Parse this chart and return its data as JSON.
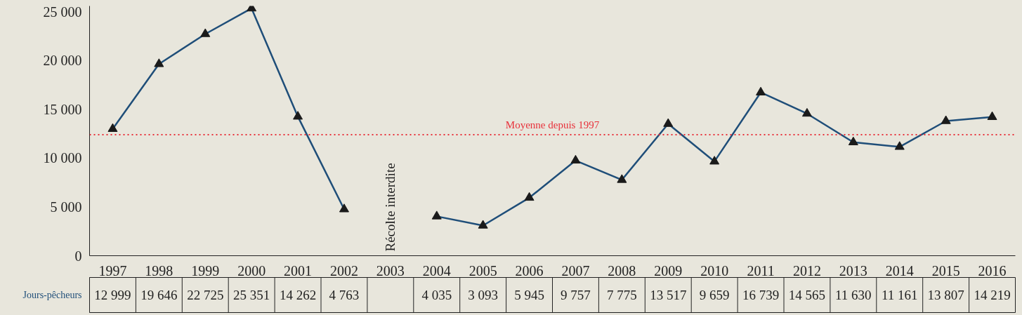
{
  "chart_data": {
    "type": "line",
    "categories": [
      "1997",
      "1998",
      "1999",
      "2000",
      "2001",
      "2002",
      "2003",
      "2004",
      "2005",
      "2006",
      "2007",
      "2008",
      "2009",
      "2010",
      "2011",
      "2012",
      "2013",
      "2014",
      "2015",
      "2016"
    ],
    "series": [
      {
        "name": "Jours-pêcheurs",
        "color": "#1f4e79",
        "values": [
          12999,
          19646,
          22725,
          25351,
          14262,
          4763,
          null,
          4035,
          3093,
          5945,
          9757,
          7775,
          13517,
          9659,
          16739,
          14565,
          11630,
          11161,
          13807,
          14219
        ],
        "value_labels": [
          "12 999",
          "19 646",
          "22 725",
          "25 351",
          "14 262",
          "4 763",
          null,
          "4 035",
          "3 093",
          "5 945",
          "9 757",
          "7 775",
          "13 517",
          "9 659",
          "16 739",
          "14 565",
          "11 630",
          "11 161",
          "13 807",
          "14 219"
        ]
      }
    ],
    "ylim": [
      0,
      25600
    ],
    "yticks": [
      0,
      {
        "value": 5000,
        "label": "5 000"
      },
      {
        "value": 10000,
        "label": "10 000"
      },
      {
        "value": 15000,
        "label": "15 000"
      },
      {
        "value": 20000,
        "label": "20 000"
      },
      {
        "value": 25000,
        "label": "25 000"
      }
    ],
    "marker": "triangle",
    "line_style": "solid",
    "grid": false,
    "ref_lines": [
      {
        "axis": "y",
        "value": 12400,
        "label": "Moyenne depuis 1997",
        "color": "#e8303a",
        "line_style": "dotted"
      }
    ],
    "annotations": [
      "Récolte interdite"
    ]
  }
}
